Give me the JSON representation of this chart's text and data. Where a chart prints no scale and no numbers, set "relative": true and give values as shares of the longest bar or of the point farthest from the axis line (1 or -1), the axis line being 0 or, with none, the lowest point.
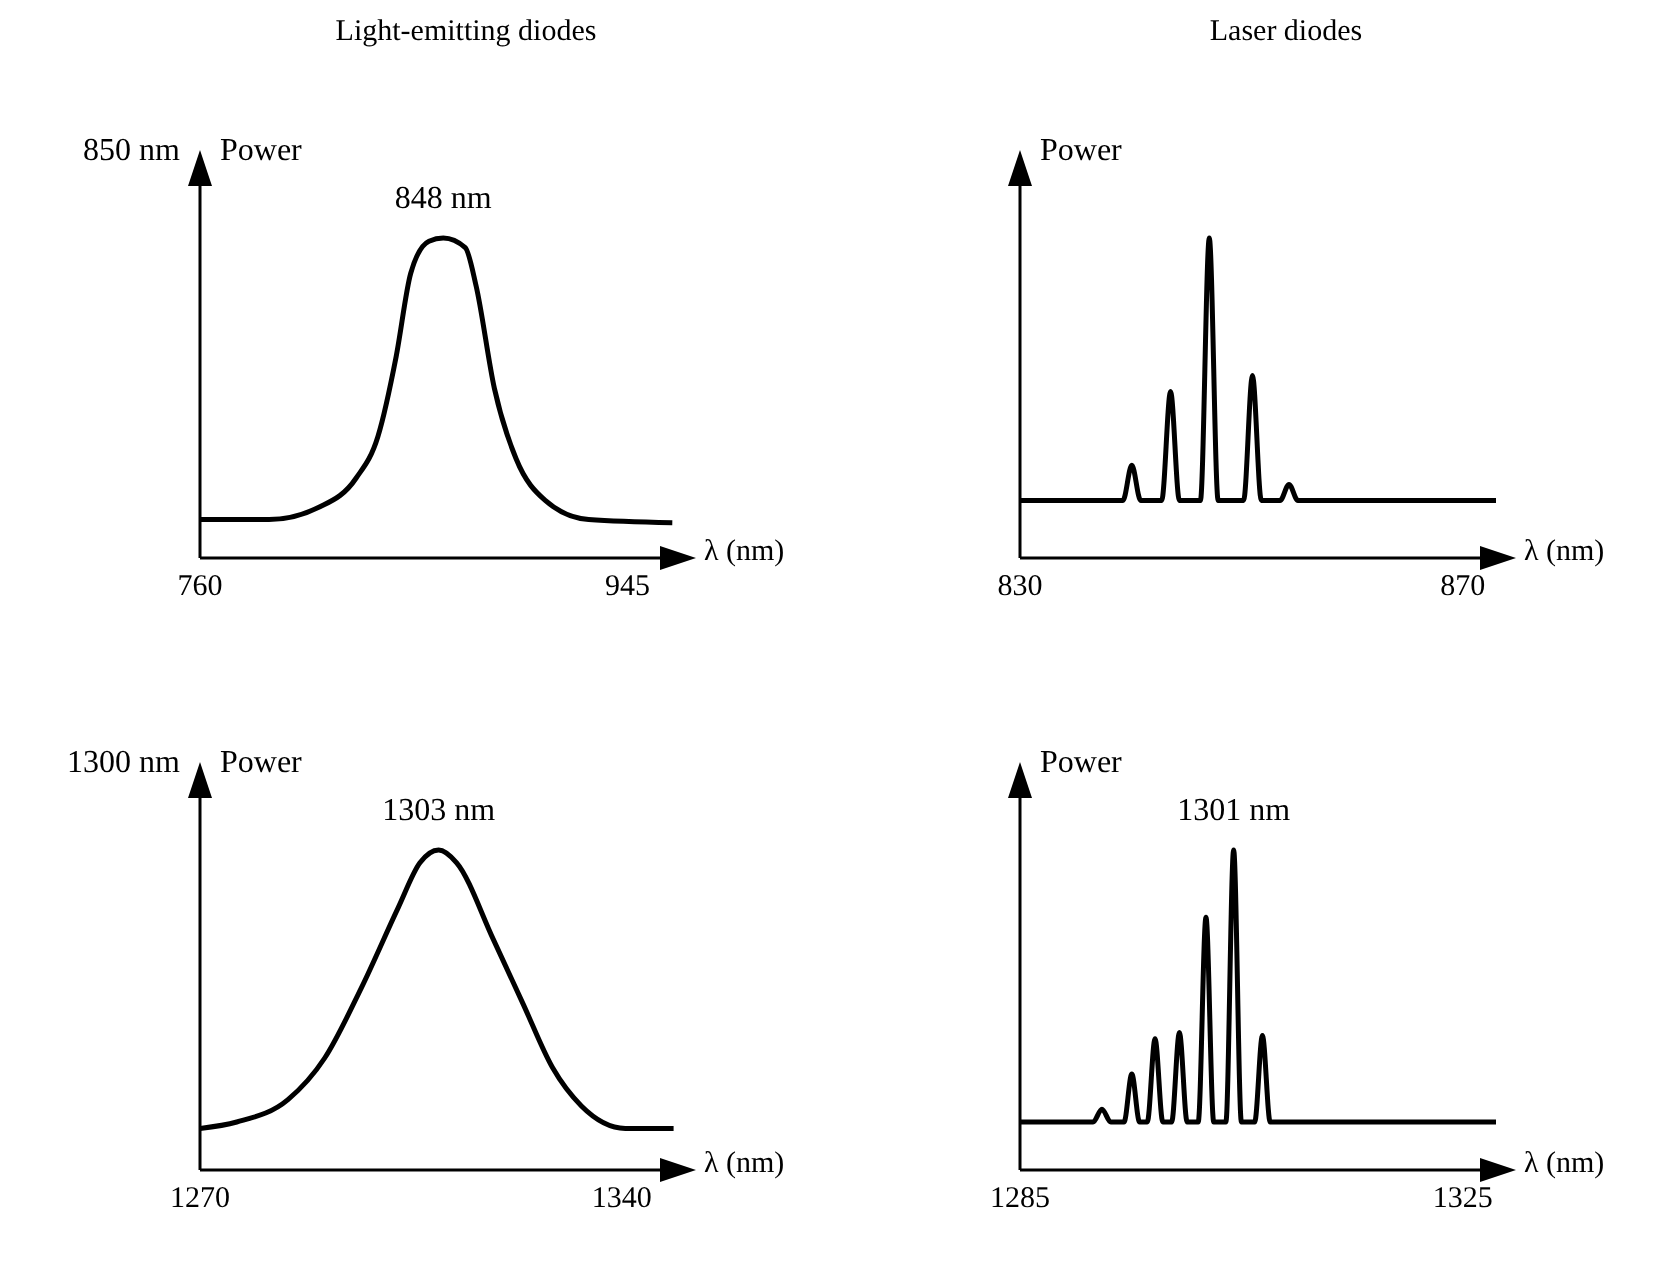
{
  "chart_data": [
    {
      "type": "line",
      "title": "Light-emitting diodes",
      "xlabel": "λ (nm)",
      "ylabel": "Power",
      "relative": true,
      "xlim": [
        760,
        966
      ],
      "xticks": [
        760,
        945
      ],
      "annotations": [
        "850 nm",
        {
          "text": "848 nm",
          "x": 865.3,
          "y": 1
        }
      ],
      "series": [
        {
          "color": "#000000",
          "x": [
            760,
            789.9,
            811.9,
            827.6,
            837,
            844.9,
            851.2,
            859.1,
            865.3,
            874.8,
            879.5,
            887.4,
            896.8,
            909.4,
            928.2,
            964.4
          ],
          "values": [
            0.12,
            0.12,
            0.16,
            0.25,
            0.38,
            0.63,
            0.89,
            0.99,
            1,
            0.97,
            0.85,
            0.53,
            0.31,
            0.18,
            0.12,
            0.11
          ]
        }
      ]
    },
    {
      "type": "line",
      "title": "Laser diodes",
      "xlabel": "λ (nm)",
      "ylabel": "Power",
      "relative": true,
      "xlim": [
        830,
        873
      ],
      "xticks": [
        830,
        870
      ],
      "series": [
        {
          "color": "#000000",
          "x": [
            830,
            839.3,
            840.1,
            840.9,
            842.8,
            843.6,
            844.4,
            846.3,
            847.1,
            847.9,
            850.2,
            851,
            851.8,
            853.5,
            854.3,
            855.1,
            873
          ],
          "values": [
            0.18,
            0.18,
            0.29,
            0.18,
            0.18,
            0.52,
            0.18,
            0.18,
            1,
            0.18,
            0.18,
            0.57,
            0.18,
            0.18,
            0.23,
            0.18,
            0.18
          ]
        }
      ]
    },
    {
      "type": "line",
      "xlabel": "λ (nm)",
      "ylabel": "Power",
      "relative": true,
      "xlim": [
        1270,
        1349
      ],
      "xticks": [
        1270,
        1340
      ],
      "annotations": [
        "1300 nm",
        {
          "text": "1303 nm",
          "x": 1309.6,
          "y": 1
        }
      ],
      "series": [
        {
          "color": "#000000",
          "x": [
            1270,
            1276.1,
            1284.6,
            1290.7,
            1296.8,
            1302.9,
            1306.5,
            1309.6,
            1312.6,
            1318.7,
            1323.6,
            1328.5,
            1333.3,
            1340.6,
            1348.6
          ],
          "values": [
            0.13,
            0.15,
            0.22,
            0.35,
            0.57,
            0.82,
            0.96,
            1,
            0.96,
            0.72,
            0.52,
            0.32,
            0.2,
            0.13,
            0.13
          ]
        }
      ]
    },
    {
      "type": "line",
      "xlabel": "λ (nm)",
      "ylabel": "Power",
      "relative": true,
      "xlim": [
        1285,
        1328
      ],
      "xticks": [
        1285,
        1325
      ],
      "annotations": [
        {
          "text": "1301 nm",
          "x": 1304.3,
          "y": 1
        }
      ],
      "series": [
        {
          "color": "#000000",
          "x": [
            1285,
            1291.6,
            1292.4,
            1293.2,
            1294.4,
            1295.1,
            1295.8,
            1296.5,
            1297.2,
            1297.9,
            1298.7,
            1299.4,
            1300.1,
            1301.1,
            1301.8,
            1302.5,
            1303.6,
            1304.3,
            1305,
            1306.2,
            1306.9,
            1307.6,
            1328
          ],
          "values": [
            0.15,
            0.15,
            0.19,
            0.15,
            0.15,
            0.3,
            0.15,
            0.15,
            0.41,
            0.15,
            0.15,
            0.43,
            0.15,
            0.15,
            0.79,
            0.15,
            0.15,
            1,
            0.15,
            0.15,
            0.42,
            0.15,
            0.15
          ]
        }
      ]
    }
  ]
}
